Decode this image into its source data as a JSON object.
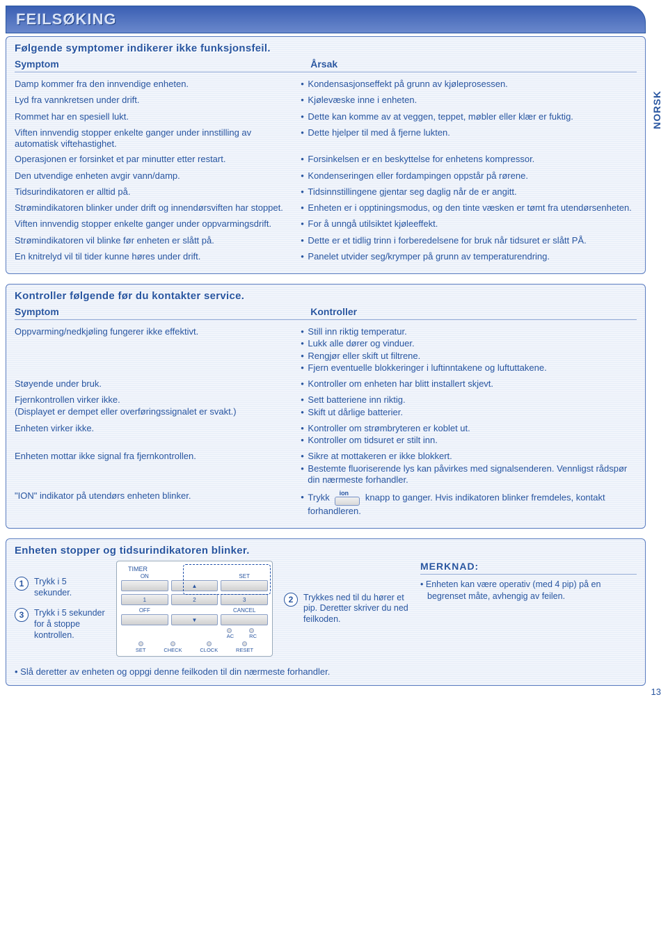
{
  "page": {
    "side_tab": "NORSK",
    "page_number": "13",
    "main_title": "FEILSØKING"
  },
  "panel1": {
    "heading": "Følgende symptomer indikerer ikke funksjonsfeil.",
    "col_symptom": "Symptom",
    "col_cause": "Årsak",
    "rows": [
      {
        "s": "Damp kommer fra den innvendige enheten.",
        "c": [
          "Kondensasjonseffekt på grunn av kjøleprosessen."
        ]
      },
      {
        "s": "Lyd fra vannkretsen under drift.",
        "c": [
          "Kjølevæske inne i enheten."
        ]
      },
      {
        "s": "Rommet har en spesiell lukt.",
        "c": [
          "Dette kan komme av at veggen, teppet, møbler eller klær er fuktig."
        ]
      },
      {
        "s": "Viften innvendig stopper enkelte ganger under innstilling av automatisk viftehastighet.",
        "c": [
          "Dette hjelper til med å fjerne lukten."
        ]
      },
      {
        "s": "Operasjonen er forsinket et par minutter etter restart.",
        "c": [
          "Forsinkelsen er en beskyttelse for enhetens kompressor."
        ]
      },
      {
        "s": "Den utvendige enheten avgir vann/damp.",
        "c": [
          "Kondenseringen eller fordampingen oppstår på rørene."
        ]
      },
      {
        "s": "Tidsurindikatoren er alltid på.",
        "c": [
          "Tidsinnstillingene gjentar seg daglig når de er angitt."
        ]
      },
      {
        "s": "Strømindikatoren blinker under drift og innendørsviften har stoppet.",
        "c": [
          "Enheten er i opptiningsmodus, og den tinte væsken er tømt fra utendørsenheten."
        ]
      },
      {
        "s": "Viften innvendig stopper enkelte ganger under oppvarmingsdrift.",
        "c": [
          "For å unngå utilsiktet kjøleeffekt."
        ]
      },
      {
        "s": "Strømindikatoren vil blinke før enheten er slått på.",
        "c": [
          "Dette er et tidlig trinn i forberedelsene for bruk når tidsuret er slått PÅ."
        ]
      },
      {
        "s": "En knitrelyd vil til tider kunne høres under drift.",
        "c": [
          "Panelet utvider seg/krymper på grunn av temperaturendring."
        ]
      }
    ]
  },
  "panel2": {
    "heading": "Kontroller følgende før du kontakter service.",
    "col_symptom": "Symptom",
    "col_check": "Kontroller",
    "rows": [
      {
        "s": "Oppvarming/nedkjøling fungerer ikke effektivt.",
        "c": [
          "Still inn riktig temperatur.",
          "Lukk alle dører og vinduer.",
          "Rengjør eller skift ut filtrene.",
          "Fjern eventuelle blokkeringer i luftinntakene og luftuttakene."
        ]
      },
      {
        "s": "Støyende under bruk.",
        "c": [
          "Kontroller om enheten har blitt installert skjevt."
        ]
      },
      {
        "s": "Fjernkontrollen virker ikke.\n(Displayet er dempet eller overføringssignalet er svakt.)",
        "c": [
          "Sett batteriene inn riktig.",
          "Skift ut dårlige batterier."
        ]
      },
      {
        "s": "Enheten virker ikke.",
        "c": [
          "Kontroller om strømbryteren er koblet ut.",
          "Kontroller om tidsuret er stilt inn."
        ]
      },
      {
        "s": "Enheten mottar ikke signal fra fjernkontrollen.",
        "c": [
          "Sikre at mottakeren er ikke blokkert.",
          "Bestemte fluoriserende lys kan påvirkes med signalsenderen. Vennligst rådspør din nærmeste forhandler."
        ]
      }
    ],
    "ion_row": {
      "s": "\"ION\" indikator på utendørs enheten blinker.",
      "prefix": "Trykk",
      "ion_label": "ion",
      "suffix": "knapp to ganger. Hvis indikatoren blinker fremdeles, kontakt forhandleren."
    }
  },
  "panel3": {
    "heading": "Enheten stopper og tidsurindikatoren blinker.",
    "step1": {
      "n": "1",
      "txt": "Trykk i 5 sekunder."
    },
    "step3": {
      "n": "3",
      "txt": "Trykk i 5 sekunder for å stoppe kontrollen."
    },
    "step2": {
      "n": "2",
      "txt": "Trykkes ned til du hører et pip. Deretter skriver du ned feilkoden."
    },
    "remote": {
      "timer": "TIMER",
      "on": "ON",
      "set": "SET",
      "b1": "1",
      "b2": "2",
      "b3": "3",
      "off": "OFF",
      "cancel": "CANCEL",
      "ac": "AC",
      "rc": "RC",
      "d_set": "SET",
      "d_check": "CHECK",
      "d_clock": "CLOCK",
      "d_reset": "RESET",
      "up": "▲",
      "down": "▼"
    },
    "note_head": "MERKNAD:",
    "note_items": [
      "Enheten kan være operativ (med 4 pip) på en begrenset måte, avhengig av feilen."
    ],
    "final": "Slå deretter av enheten og oppgi denne feilkoden til din nærmeste forhandler."
  },
  "colors": {
    "brand": "#2855a0",
    "border": "#5a7cc0",
    "stripe_a": "#e8eef8",
    "stripe_b": "#f4f7fc"
  }
}
